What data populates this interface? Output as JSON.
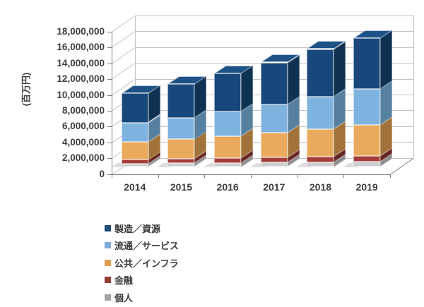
{
  "chart_data": {
    "type": "bar",
    "subtype": "stacked-3d-column",
    "title": "",
    "unit_label": "(百万円)",
    "xlabel": "",
    "ylabel": "(百万円)",
    "categories": [
      "2014",
      "2015",
      "2016",
      "2017",
      "2018",
      "2019"
    ],
    "series": [
      {
        "name": "個人",
        "values": [
          400000,
          450000,
          500000,
          550000,
          600000,
          650000
        ],
        "front_color": "#cdcdcd",
        "side_color": "#8e8e8e"
      },
      {
        "name": "金融",
        "values": [
          500000,
          550000,
          600000,
          650000,
          700000,
          750000
        ],
        "front_color": "#a43d39",
        "side_color": "#662523"
      },
      {
        "name": "公共／インフラ",
        "values": [
          2300000,
          2500000,
          2750000,
          3100000,
          3500000,
          3900000
        ],
        "front_color": "#eaaa5e",
        "side_color": "#a1733a"
      },
      {
        "name": "流通／サービス",
        "values": [
          2400000,
          2750000,
          3150000,
          3600000,
          4100000,
          4550000
        ],
        "front_color": "#7fb3df",
        "side_color": "#56809f"
      },
      {
        "name": "製造／資源",
        "values": [
          3700000,
          4250000,
          4800000,
          5300000,
          6000000,
          6450000
        ],
        "front_color": "#18487b",
        "side_color": "#0f3152",
        "top_color": "#1d5287"
      }
    ],
    "totals": [
      9300000,
      10500000,
      11800000,
      13200000,
      14900000,
      16300000
    ],
    "y_axis": {
      "min": 0,
      "max": 18000000,
      "step": 2000000,
      "tick_labels": [
        "0",
        "2,000,000",
        "4,000,000",
        "6,000,000",
        "8,000,000",
        "10,000,000",
        "12,000,000",
        "14,000,000",
        "16,000,000",
        "18,000,000"
      ]
    },
    "grid": true,
    "legend_position": "bottom-left",
    "legend": [
      {
        "label": "製造／資源",
        "color": "#1f4e79"
      },
      {
        "label": "流通／サービス",
        "color": "#7ea9d8"
      },
      {
        "label": "公共／インフラ",
        "color": "#e19e4d"
      },
      {
        "label": "金融",
        "color": "#943c37"
      },
      {
        "label": "個人",
        "color": "#a3a3a3"
      }
    ],
    "colors": {
      "grid": "#c3c3c3",
      "axis": "#7f7f7f",
      "text": "#3f3f3f",
      "background": "#ffffff"
    }
  }
}
